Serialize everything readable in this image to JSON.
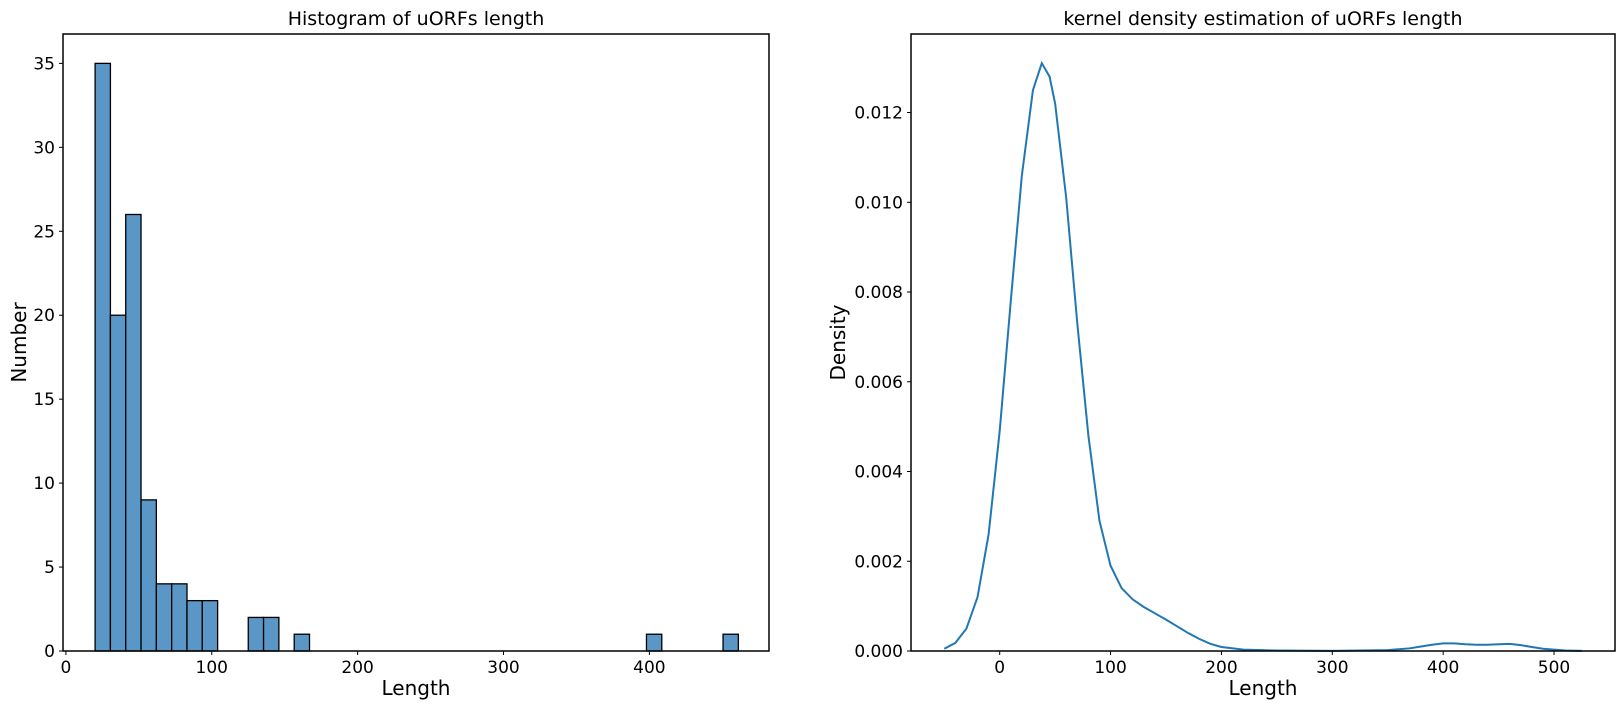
{
  "chart_data": [
    {
      "type": "bar",
      "title": "Histogram of uORFs length",
      "xlabel": "Length",
      "ylabel": "Number",
      "xlim": [
        -2,
        482
      ],
      "ylim": [
        0,
        36.75
      ],
      "xticks": [
        0,
        100,
        200,
        300,
        400
      ],
      "yticks": [
        0,
        5,
        10,
        15,
        20,
        25,
        30,
        35
      ],
      "bin_width": 10.5,
      "bins": [
        {
          "x0": 20.0,
          "value": 35
        },
        {
          "x0": 30.5,
          "value": 20
        },
        {
          "x0": 41.0,
          "value": 26
        },
        {
          "x0": 51.5,
          "value": 9
        },
        {
          "x0": 62.0,
          "value": 4
        },
        {
          "x0": 72.5,
          "value": 4
        },
        {
          "x0": 83.0,
          "value": 3
        },
        {
          "x0": 93.5,
          "value": 3
        },
        {
          "x0": 125.0,
          "value": 2
        },
        {
          "x0": 135.5,
          "value": 2
        },
        {
          "x0": 156.5,
          "value": 1
        },
        {
          "x0": 398.0,
          "value": 1
        },
        {
          "x0": 450.5,
          "value": 1
        }
      ],
      "bar_color": "#5b97c6",
      "grid": false
    },
    {
      "type": "line",
      "title": "kernel density estimation of uORFs length",
      "xlabel": "Length",
      "ylabel": "Density",
      "xlim": [
        -80,
        555
      ],
      "ylim": [
        0,
        0.01375
      ],
      "xticks": [
        0,
        100,
        200,
        300,
        400,
        500
      ],
      "yticks": [
        0.0,
        0.002,
        0.004,
        0.006,
        0.008,
        0.01,
        0.012
      ],
      "ytick_labels": [
        "0.000",
        "0.002",
        "0.004",
        "0.006",
        "0.008",
        "0.010",
        "0.012"
      ],
      "x": [
        -50,
        -40,
        -30,
        -20,
        -10,
        0,
        10,
        20,
        30,
        38,
        45,
        50,
        60,
        70,
        80,
        90,
        100,
        110,
        120,
        130,
        140,
        150,
        160,
        170,
        180,
        190,
        200,
        220,
        250,
        300,
        350,
        370,
        380,
        390,
        400,
        410,
        420,
        430,
        440,
        450,
        460,
        470,
        480,
        490,
        500,
        510,
        525
      ],
      "y": [
        5e-05,
        0.00018,
        0.0005,
        0.0012,
        0.0026,
        0.0049,
        0.0078,
        0.0106,
        0.0125,
        0.0131,
        0.0128,
        0.0122,
        0.0101,
        0.0073,
        0.0048,
        0.0029,
        0.0019,
        0.0014,
        0.00115,
        0.00098,
        0.00084,
        0.0007,
        0.00055,
        0.0004,
        0.00027,
        0.00016,
        9e-05,
        3e-05,
        1e-05,
        2e-06,
        2e-05,
        6e-05,
        0.0001,
        0.00014,
        0.00017,
        0.00017,
        0.00015,
        0.00014,
        0.00014,
        0.00015,
        0.00016,
        0.00013,
        9e-05,
        5e-05,
        3e-05,
        1e-05,
        2e-06
      ],
      "line_color": "#1f77b4",
      "grid": false
    }
  ]
}
